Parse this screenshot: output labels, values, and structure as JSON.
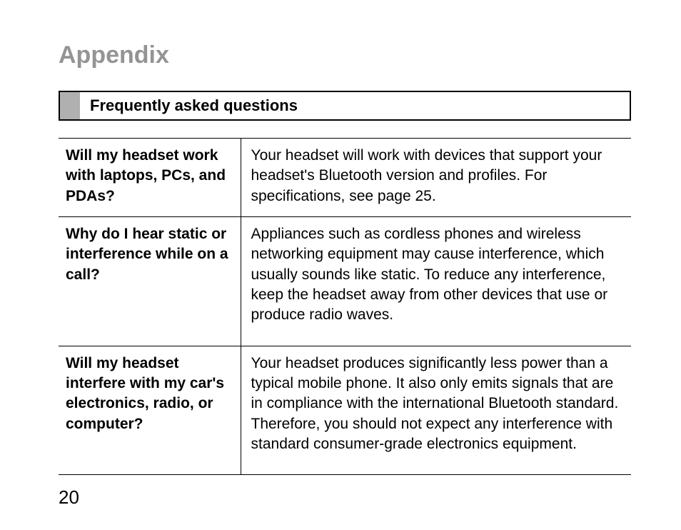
{
  "page_title": "Appendix",
  "section_title": "Frequently asked questions",
  "page_number": "20",
  "colors": {
    "title_gray": "#949494",
    "marker_gray": "#b0b0b0",
    "border": "#000000",
    "text": "#000000",
    "background": "#ffffff"
  },
  "typography": {
    "title_fontsize": 34,
    "section_fontsize": 22,
    "body_fontsize": 21,
    "page_number_fontsize": 26,
    "font_family": "Arial"
  },
  "faq": [
    {
      "question": "Will my headset work with laptops, PCs, and PDAs?",
      "answer": "Your headset will work with devices that support your headset's Bluetooth version and profiles. For specifications, see page 25."
    },
    {
      "question": "Why do I hear static or interference while on a call?",
      "answer": "Appliances such as cordless phones and wireless networking equipment may cause interference, which usually sounds like static. To reduce any interference, keep the headset away from other devices that use or produce radio waves."
    },
    {
      "question": "Will my headset interfere with my car's electronics, radio, or computer?",
      "answer": "Your headset produces significantly less power than a typical mobile phone. It also only emits signals that are in compliance with the international Bluetooth standard. Therefore, you should not expect any interference with standard consumer-grade electronics equipment."
    }
  ]
}
